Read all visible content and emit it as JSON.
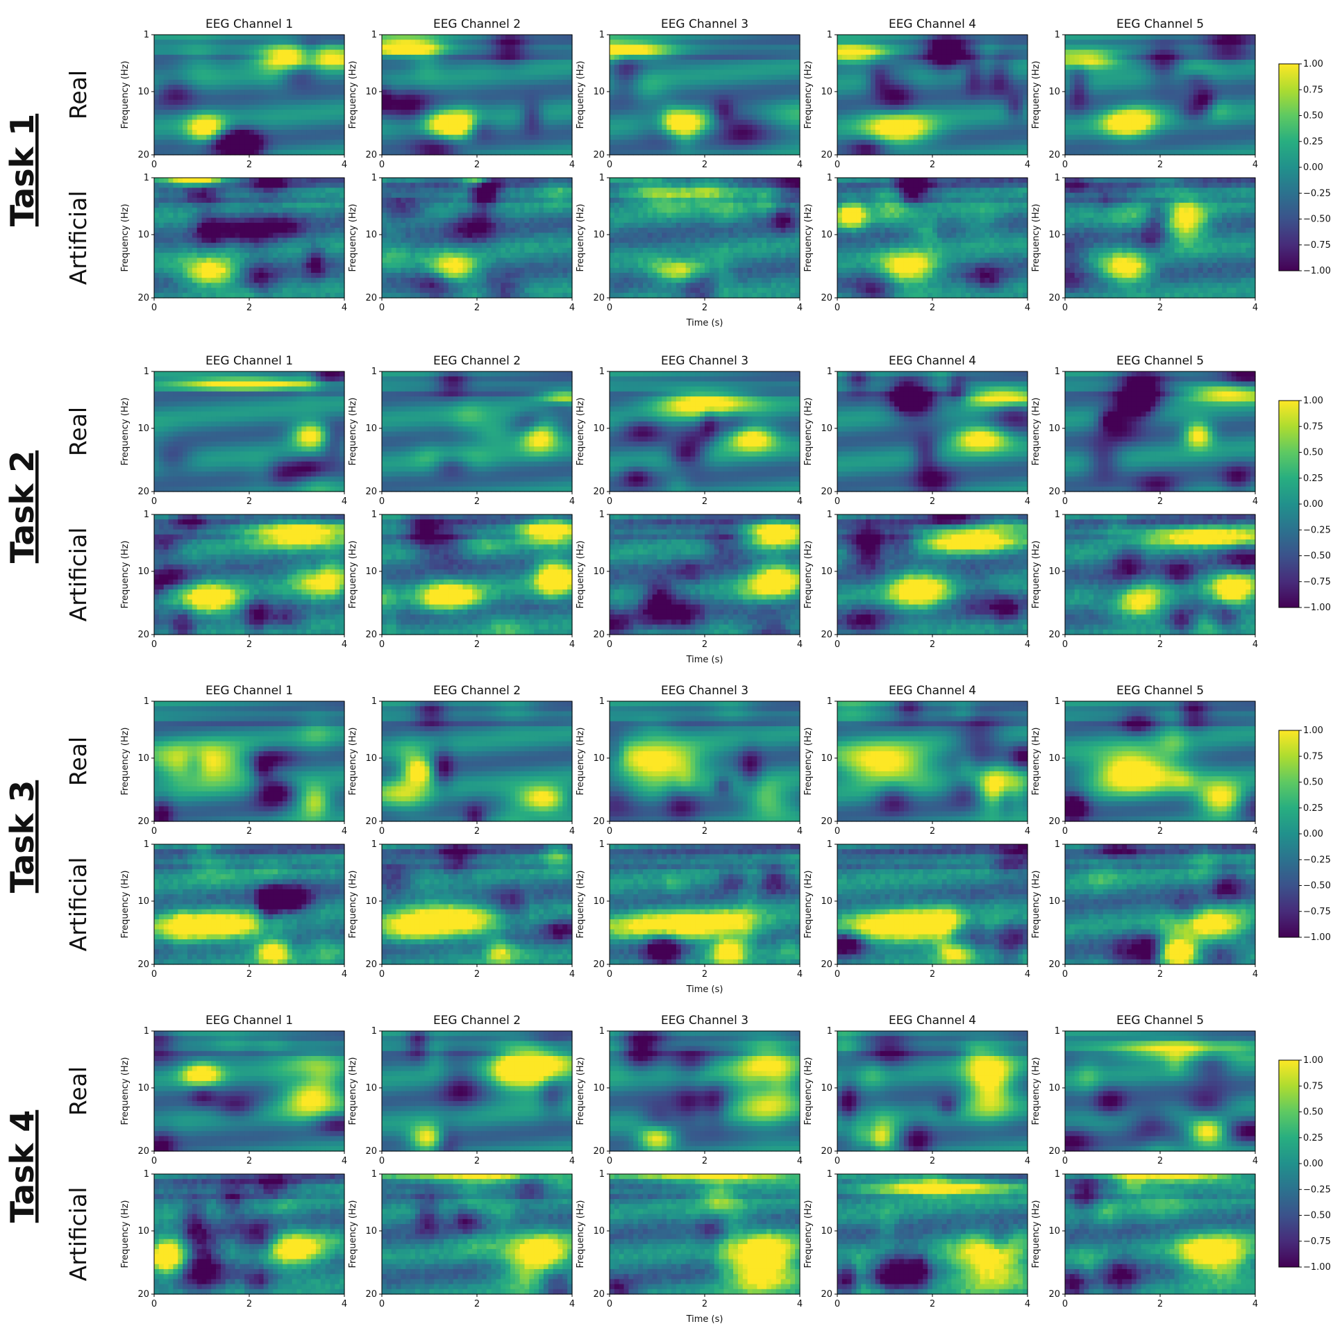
{
  "chart_data": {
    "type": "heatmap",
    "description_hint": "time-frequency EEG spectrograms, 4 tasks x (Real, Artificial) x 5 channels",
    "tasks": [
      {
        "label": "Task 1"
      },
      {
        "label": "Task 2"
      },
      {
        "label": "Task 3"
      },
      {
        "label": "Task 4"
      }
    ],
    "row_labels": [
      "Real",
      "Artificial"
    ],
    "channel_titles": [
      "EEG Channel 1",
      "EEG Channel 2",
      "EEG Channel 3",
      "EEG Channel 4",
      "EEG Channel 5"
    ],
    "xlabel": "Time (s)",
    "ylabel": "Frequency (Hz)",
    "x_ticks": [
      "0",
      "2",
      "4"
    ],
    "y_ticks": [
      "1",
      "10",
      "20"
    ],
    "xlim": [
      0,
      4
    ],
    "ylim": [
      1,
      20
    ],
    "colormap": "viridis",
    "colorbar": {
      "min": -1.0,
      "max": 1.0,
      "ticks": [
        "1.00",
        "0.75",
        "0.50",
        "0.25",
        "0.00",
        "−0.25",
        "−0.50",
        "−0.75",
        "−1.00"
      ]
    },
    "hotspots": [
      [
        [
          [
            [
              1.1,
              16,
              0.4,
              2.3
            ],
            [
              3.4,
              4.5,
              1.2,
              1.6
            ]
          ],
          [
            [
              1.5,
              15.5,
              0.5,
              2.3
            ],
            [
              0.5,
              3,
              0.8,
              1.5
            ]
          ],
          [
            [
              1.5,
              15,
              0.5,
              2.3
            ],
            [
              0.3,
              3.5,
              1.0,
              1.5
            ]
          ],
          [
            [
              1.3,
              16,
              0.7,
              2.5
            ],
            [
              0.3,
              4,
              0.8,
              1.5
            ]
          ],
          [
            [
              1.3,
              15,
              0.5,
              2.3
            ],
            [
              0.4,
              5,
              0.8,
              1.5
            ]
          ]
        ],
        [
          [
            [
              1.2,
              16,
              0.6,
              2.2
            ],
            [
              0.9,
              1.5,
              0.6,
              1.0
            ]
          ],
          [
            [
              1.5,
              15.5,
              0.5,
              2.2
            ],
            [
              2,
              1.5,
              0.3,
              1.0
            ]
          ],
          [
            [
              1.5,
              15.5,
              0.6,
              2.3
            ],
            [
              1.5,
              3,
              1.0,
              2.0
            ]
          ],
          [
            [
              1.5,
              15.5,
              0.6,
              2.5
            ],
            [
              0.3,
              7,
              0.3,
              2.0
            ]
          ],
          [
            [
              1.3,
              15.5,
              0.5,
              2.3
            ],
            [
              2.5,
              8,
              0.5,
              3.0
            ]
          ]
        ]
      ],
      [
        [
          [
            [
              3.3,
              11,
              0.4,
              2.0
            ],
            [
              2,
              3,
              1.5,
              1.0
            ]
          ],
          [
            [
              3.3,
              11,
              0.4,
              2.5
            ],
            [
              3.8,
              5,
              0.5,
              1.2
            ]
          ],
          [
            [
              3,
              11.5,
              0.5,
              2.0
            ],
            [
              2,
              6,
              1.0,
              2.0
            ]
          ],
          [
            [
              3,
              11.5,
              0.6,
              2.0
            ],
            [
              3.5,
              5,
              0.8,
              1.5
            ]
          ],
          [
            [
              3.5,
              4.5,
              1.0,
              1.3
            ],
            [
              2.8,
              11,
              0.3,
              2.0
            ]
          ]
        ],
        [
          [
            [
              3.5,
              11,
              0.5,
              3.5
            ],
            [
              1.2,
              14.5,
              0.6,
              2.5
            ],
            [
              3,
              4,
              1.0,
              2.0
            ]
          ],
          [
            [
              3.6,
              11,
              0.4,
              3.0
            ],
            [
              3.5,
              3.5,
              0.6,
              2.0
            ],
            [
              1.5,
              14,
              0.6,
              2.0
            ]
          ],
          [
            [
              3.5,
              11.5,
              0.5,
              3.0
            ],
            [
              3.5,
              4,
              0.6,
              2.0
            ]
          ],
          [
            [
              1.7,
              13,
              0.6,
              3.0
            ],
            [
              2.8,
              5,
              1.0,
              2.0
            ]
          ],
          [
            [
              3,
              4.5,
              1.4,
              1.3
            ],
            [
              1.5,
              15,
              0.6,
              2.5
            ],
            [
              3.5,
              13,
              0.4,
              2.5
            ]
          ]
        ]
      ],
      [
        [
          [
            [
              3.5,
              17,
              0.4,
              2.5
            ],
            [
              1.0,
              11,
              1.0,
              3.0
            ]
          ],
          [
            [
              3.4,
              16.5,
              0.5,
              2.0
            ],
            [
              0.8,
              12,
              0.3,
              2.0
            ]
          ],
          [
            [
              3.4,
              16.5,
              0.5,
              2.5
            ],
            [
              1.0,
              11,
              1.0,
              3.0
            ]
          ],
          [
            [
              3.4,
              15,
              0.5,
              3.5
            ],
            [
              1.0,
              11,
              1.0,
              3.0
            ]
          ],
          [
            [
              3.3,
              16.5,
              0.5,
              2.5
            ],
            [
              1.5,
              12,
              1.0,
              3.0
            ]
          ]
        ],
        [
          [
            [
              2.5,
              18,
              0.35,
              2.0
            ],
            [
              1.2,
              14,
              1.2,
              2.5
            ]
          ],
          [
            [
              2.6,
              18,
              0.35,
              2.0
            ],
            [
              1.2,
              13,
              1.2,
              3.0
            ]
          ],
          [
            [
              2.5,
              18,
              0.35,
              2.0
            ],
            [
              1.5,
              14,
              1.5,
              2.5
            ]
          ],
          [
            [
              2.5,
              18,
              0.35,
              2.0
            ],
            [
              1.5,
              14,
              1.5,
              3.0
            ]
          ],
          [
            [
              2.4,
              18,
              0.35,
              2.0
            ],
            [
              3.0,
              14,
              0.8,
              2.5
            ]
          ]
        ]
      ],
      [
        [
          [
            [
              3.3,
              10,
              0.6,
              4.5
            ],
            [
              1.0,
              8,
              0.4,
              2.0
            ]
          ],
          [
            [
              3.2,
              7,
              0.8,
              4.0
            ],
            [
              1.0,
              18,
              0.4,
              2.0
            ]
          ],
          [
            [
              3.3,
              9,
              0.6,
              6.0
            ],
            [
              1.0,
              18,
              0.4,
              2.0
            ]
          ],
          [
            [
              3.2,
              9,
              0.5,
              5.0
            ],
            [
              0.8,
              18,
              0.4,
              2.0
            ]
          ],
          [
            [
              2.5,
              4,
              1.5,
              1.5
            ],
            [
              3.0,
              17,
              0.4,
              2.0
            ]
          ]
        ],
        [
          [
            [
              0.3,
              14,
              0.4,
              3.5
            ],
            [
              2.8,
              13,
              0.8,
              3.0
            ]
          ],
          [
            [
              3.3,
              15,
              0.7,
              4.0
            ],
            [
              2.5,
              1.5,
              2.0,
              1.0
            ]
          ],
          [
            [
              3.3,
              15,
              0.7,
              4.0
            ],
            [
              2.5,
              1.5,
              2.0,
              1.0
            ]
          ],
          [
            [
              3.2,
              15,
              0.8,
              4.0
            ],
            [
              2.0,
              3,
              1.5,
              1.5
            ]
          ],
          [
            [
              3.2,
              14,
              0.7,
              3.5
            ],
            [
              2.5,
              1.5,
              1.5,
              1.0
            ]
          ]
        ]
      ]
    ]
  }
}
